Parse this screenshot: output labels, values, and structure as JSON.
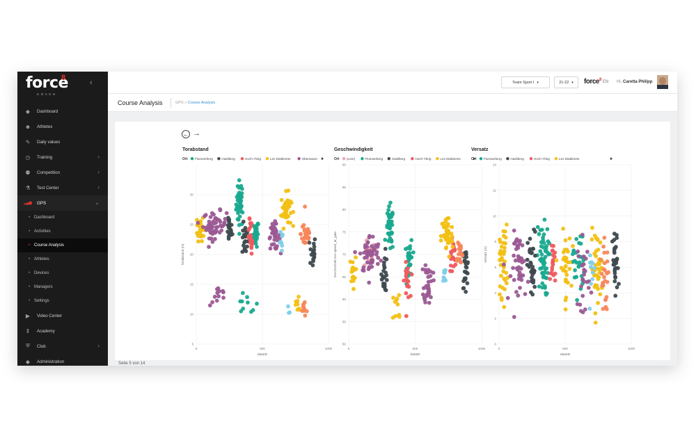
{
  "brand": {
    "logo_text": "force",
    "logo_sup": "8",
    "logo_sub": "COACH"
  },
  "sidebar": {
    "collapse_icon": "chevron-left-icon",
    "items": [
      {
        "label": "Dashboard",
        "icon": "diamond-icon",
        "chevron": false
      },
      {
        "label": "Athletes",
        "icon": "people-icon",
        "chevron": false
      },
      {
        "label": "Daily values",
        "icon": "pencil-icon",
        "chevron": false
      },
      {
        "label": "Training",
        "icon": "stopwatch-icon",
        "chevron": true
      },
      {
        "label": "Competition",
        "icon": "trophy-icon",
        "chevron": true
      },
      {
        "label": "Test Center",
        "icon": "flask-icon",
        "chevron": true
      },
      {
        "label": "GPS",
        "icon": "signal-icon",
        "chevron": true,
        "active": true
      }
    ],
    "sub_items": [
      {
        "label": "Dashboard"
      },
      {
        "label": "Activities"
      },
      {
        "label": "Course Analysis",
        "active": true
      },
      {
        "label": "Athletes"
      },
      {
        "label": "Devices"
      },
      {
        "label": "Managers"
      },
      {
        "label": "Settings"
      }
    ],
    "items_after": [
      {
        "label": "Video Center",
        "icon": "video-icon",
        "chevron": false
      },
      {
        "label": "Academy",
        "icon": "books-icon",
        "chevron": false
      },
      {
        "label": "Club",
        "icon": "shield-icon",
        "chevron": true
      },
      {
        "label": "Administration",
        "icon": "diamond-icon",
        "chevron": false
      }
    ]
  },
  "header": {
    "team_select": "Team Sport I",
    "season_select": "21-22",
    "mini_logo": "force",
    "mini_logo_sup": "8",
    "language": "EN",
    "greeting": "Hi,",
    "user_name": "Caretta Philipp"
  },
  "page": {
    "title": "Course Analysis",
    "breadcrumb_root": "GPS",
    "breadcrumb_sep": "»",
    "breadcrumb_current": "Course Analysis",
    "status": "Seite 5 von 14"
  },
  "legend_prefix": "Ort",
  "colors": {
    "Flumserberg": "#19a98f",
    "Hasliberg": "#3e4a4f",
    "Hoch-Ybrig": "#ef5a5f",
    "Les Diablerets": "#f2c014",
    "Obersaxen": "#9b5a94",
    "(Leer)": "#f4a2b0",
    "extra_orange": "#f8865c",
    "extra_blue": "#7fcfe8"
  },
  "chart_data": [
    {
      "type": "scatter",
      "title": "Torabstand",
      "xlabel": "dataID",
      "ylabel": "Torabstand (m)",
      "xlim": [
        0,
        1000
      ],
      "ylim": [
        5,
        35
      ],
      "xticks": [
        0,
        500,
        1000
      ],
      "yticks": [
        5,
        10,
        15,
        20,
        25,
        30
      ],
      "legend": [
        "Flumserberg",
        "Hasliberg",
        "Hoch-Ybrig",
        "Les Diablerets",
        "Obersaxen"
      ],
      "series": [
        {
          "name": "Flumserberg",
          "color": "#19a98f",
          "clusters": [
            [
              330,
              28.5,
              25,
              3.5,
              40
            ],
            [
              450,
              23.5,
              20,
              2.0,
              25
            ],
            [
              380,
              11.5,
              80,
              1.5,
              10
            ]
          ]
        },
        {
          "name": "Hasliberg",
          "color": "#3e4a4f",
          "clusters": [
            [
              250,
              24.0,
              20,
              2.0,
              20
            ],
            [
              370,
              22.5,
              20,
              2.5,
              20
            ],
            [
              880,
              20.5,
              20,
              2.5,
              18
            ]
          ]
        },
        {
          "name": "Hoch-Ybrig",
          "color": "#ef5a5f",
          "clusters": [
            [
              405,
              24.5,
              15,
              2.5,
              15
            ],
            [
              420,
              21.5,
              20,
              2.0,
              10
            ]
          ]
        },
        {
          "name": "Les Diablerets",
          "color": "#f2c014",
          "clusters": [
            [
              30,
              24.5,
              25,
              2.0,
              30
            ],
            [
              680,
              27.5,
              35,
              2.5,
              40
            ],
            [
              770,
              11.5,
              40,
              1.5,
              8
            ]
          ]
        },
        {
          "name": "Obersaxen",
          "color": "#9b5a94",
          "clusters": [
            [
              140,
              25.0,
              80,
              2.0,
              55
            ],
            [
              590,
              23.0,
              40,
              2.0,
              35
            ],
            [
              170,
              13.0,
              60,
              1.5,
              12
            ]
          ]
        },
        {
          "name": "",
          "color": "#f8865c",
          "clusters": [
            [
              830,
              23.5,
              35,
              2.5,
              30
            ],
            [
              820,
              11.0,
              30,
              1.5,
              10
            ]
          ]
        },
        {
          "name": "",
          "color": "#7fcfe8",
          "clusters": [
            [
              640,
              22.0,
              15,
              1.5,
              8
            ],
            [
              700,
              10.5,
              10,
              1.0,
              3
            ]
          ]
        }
      ]
    },
    {
      "type": "scatter",
      "title": "Geschwindigkeit",
      "xlabel": "dataID",
      "ylabel": "Durchschnitt von speed_at_gate",
      "xlim": [
        0,
        1000
      ],
      "ylim": [
        50,
        90
      ],
      "xticks": [
        0,
        500,
        1000
      ],
      "yticks": [
        50,
        55,
        60,
        65,
        70,
        75,
        80,
        85,
        90
      ],
      "legend": [
        "(Leer)",
        "Flumserberg",
        "Hasliberg",
        "Hoch-Ybrig",
        "Les Diablerets"
      ],
      "series": [
        {
          "name": "(Leer)",
          "color": "#f4a2b0",
          "clusters": [
            [
              150,
              70.0,
              60,
              3.0,
              12
            ]
          ]
        },
        {
          "name": "Flumserberg",
          "color": "#19a98f",
          "clusters": [
            [
              310,
              75.5,
              25,
              4.5,
              40
            ],
            [
              460,
              69.0,
              20,
              4.0,
              30
            ]
          ]
        },
        {
          "name": "Hasliberg",
          "color": "#3e4a4f",
          "clusters": [
            [
              270,
              66.0,
              20,
              4.0,
              25
            ],
            [
              880,
              67.0,
              20,
              4.0,
              25
            ]
          ]
        },
        {
          "name": "Hoch-Ybrig",
          "color": "#ef5a5f",
          "clusters": [
            [
              440,
              64.0,
              20,
              3.5,
              18
            ],
            [
              780,
              70.0,
              25,
              4.0,
              20
            ]
          ]
        },
        {
          "name": "Les Diablerets",
          "color": "#f2c014",
          "clusters": [
            [
              30,
              66.0,
              20,
              3.0,
              18
            ],
            [
              740,
              74.0,
              40,
              4.5,
              50
            ],
            [
              370,
              58.0,
              40,
              4.0,
              10
            ]
          ]
        },
        {
          "name": "",
          "color": "#9b5a94",
          "clusters": [
            [
              160,
              70.0,
              70,
              4.0,
              55
            ],
            [
              600,
              64.0,
              30,
              4.5,
              30
            ]
          ]
        },
        {
          "name": "",
          "color": "#f8865c",
          "clusters": [
            [
              830,
              70.5,
              25,
              3.0,
              18
            ]
          ]
        },
        {
          "name": "",
          "color": "#7fcfe8",
          "clusters": [
            [
              720,
              65.0,
              15,
              2.5,
              10
            ]
          ]
        }
      ]
    },
    {
      "type": "scatter",
      "title": "Versatz",
      "xlabel": "dataID",
      "ylabel": "Versatz (m)",
      "xlim": [
        0,
        1000
      ],
      "ylim": [
        0,
        14
      ],
      "xticks": [
        0,
        500,
        1000
      ],
      "yticks": [
        0,
        2,
        4,
        6,
        8,
        10,
        12,
        14
      ],
      "legend": [
        "Flumserberg",
        "Hasliberg",
        "Hoch-Ybrig",
        "Les Diablerets"
      ],
      "series": [
        {
          "name": "Flumserberg",
          "color": "#19a98f",
          "clusters": [
            [
              330,
              6.5,
              40,
              2.5,
              55
            ],
            [
              600,
              6.5,
              40,
              2.5,
              30
            ]
          ]
        },
        {
          "name": "Hasliberg",
          "color": "#3e4a4f",
          "clusters": [
            [
              250,
              6.0,
              30,
              2.5,
              35
            ],
            [
              880,
              6.0,
              20,
              2.5,
              30
            ]
          ]
        },
        {
          "name": "Hoch-Ybrig",
          "color": "#ef5a5f",
          "clusters": [
            [
              410,
              6.5,
              20,
              2.0,
              20
            ]
          ]
        },
        {
          "name": "Les Diablerets",
          "color": "#f2c014",
          "clusters": [
            [
              30,
              6.5,
              30,
              2.5,
              40
            ],
            [
              500,
              6.0,
              40,
              2.5,
              35
            ],
            [
              740,
              6.0,
              40,
              2.5,
              40
            ]
          ]
        },
        {
          "name": "",
          "color": "#9b5a94",
          "clusters": [
            [
              160,
              6.0,
              60,
              2.5,
              45
            ],
            [
              640,
              5.5,
              40,
              2.5,
              25
            ]
          ]
        },
        {
          "name": "",
          "color": "#f8865c",
          "clusters": [
            [
              800,
              5.0,
              30,
              2.5,
              25
            ]
          ]
        },
        {
          "name": "",
          "color": "#7fcfe8",
          "clusters": [
            [
              700,
              6.0,
              20,
              2.0,
              10
            ]
          ]
        }
      ]
    }
  ]
}
